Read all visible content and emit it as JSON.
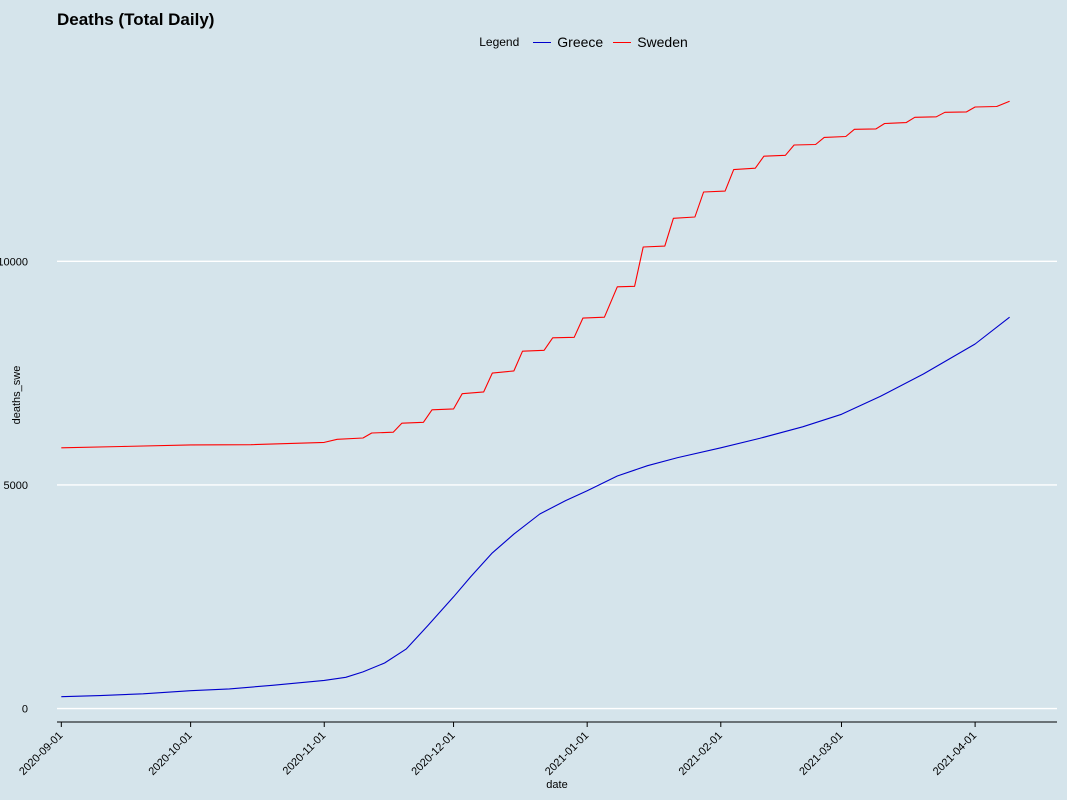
{
  "chart_data": {
    "type": "line",
    "title": "Deaths (Total Daily)",
    "xlabel": "date",
    "ylabel": "deaths_swe",
    "legend_title": "Legend",
    "legend_position": "top",
    "grid": "horizontal major lines",
    "xlim": [
      "2020-08-31",
      "2021-04-20"
    ],
    "ylim": [
      -300,
      14500
    ],
    "x_ticks": [
      "2020-09-01",
      "2020-10-01",
      "2020-11-01",
      "2020-12-01",
      "2021-01-01",
      "2021-02-01",
      "2021-03-01",
      "2021-04-01"
    ],
    "y_ticks": [
      0,
      5000,
      10000
    ],
    "series": [
      {
        "name": "Greece",
        "color": "#0000cc",
        "points": [
          [
            "2020-09-01",
            266
          ],
          [
            "2020-09-10",
            290
          ],
          [
            "2020-09-20",
            330
          ],
          [
            "2020-10-01",
            400
          ],
          [
            "2020-10-10",
            440
          ],
          [
            "2020-10-20",
            520
          ],
          [
            "2020-11-01",
            630
          ],
          [
            "2020-11-06",
            700
          ],
          [
            "2020-11-10",
            820
          ],
          [
            "2020-11-15",
            1020
          ],
          [
            "2020-11-20",
            1330
          ],
          [
            "2020-11-25",
            1850
          ],
          [
            "2020-12-01",
            2500
          ],
          [
            "2020-12-05",
            2950
          ],
          [
            "2020-12-10",
            3480
          ],
          [
            "2020-12-15",
            3900
          ],
          [
            "2020-12-21",
            4350
          ],
          [
            "2020-12-27",
            4650
          ],
          [
            "2021-01-01",
            4870
          ],
          [
            "2021-01-08",
            5200
          ],
          [
            "2021-01-15",
            5430
          ],
          [
            "2021-01-22",
            5610
          ],
          [
            "2021-02-01",
            5830
          ],
          [
            "2021-02-10",
            6040
          ],
          [
            "2021-02-20",
            6300
          ],
          [
            "2021-03-01",
            6580
          ],
          [
            "2021-03-10",
            6980
          ],
          [
            "2021-03-20",
            7480
          ],
          [
            "2021-04-01",
            8150
          ],
          [
            "2021-04-09",
            8750
          ]
        ]
      },
      {
        "name": "Sweden",
        "color": "#ff0000",
        "points": [
          [
            "2020-09-01",
            5830
          ],
          [
            "2020-09-15",
            5860
          ],
          [
            "2020-10-01",
            5895
          ],
          [
            "2020-10-15",
            5900
          ],
          [
            "2020-11-01",
            5950
          ],
          [
            "2020-11-04",
            6020
          ],
          [
            "2020-11-10",
            6050
          ],
          [
            "2020-11-12",
            6160
          ],
          [
            "2020-11-17",
            6180
          ],
          [
            "2020-11-19",
            6380
          ],
          [
            "2020-11-24",
            6400
          ],
          [
            "2020-11-26",
            6680
          ],
          [
            "2020-12-01",
            6700
          ],
          [
            "2020-12-03",
            7040
          ],
          [
            "2020-12-08",
            7080
          ],
          [
            "2020-12-10",
            7500
          ],
          [
            "2020-12-15",
            7550
          ],
          [
            "2020-12-17",
            7990
          ],
          [
            "2020-12-22",
            8010
          ],
          [
            "2020-12-24",
            8290
          ],
          [
            "2020-12-29",
            8300
          ],
          [
            "2020-12-31",
            8730
          ],
          [
            "2021-01-05",
            8750
          ],
          [
            "2021-01-08",
            9430
          ],
          [
            "2021-01-12",
            9440
          ],
          [
            "2021-01-14",
            10320
          ],
          [
            "2021-01-19",
            10340
          ],
          [
            "2021-01-21",
            10960
          ],
          [
            "2021-01-26",
            10990
          ],
          [
            "2021-01-28",
            11550
          ],
          [
            "2021-02-02",
            11570
          ],
          [
            "2021-02-04",
            12050
          ],
          [
            "2021-02-09",
            12080
          ],
          [
            "2021-02-11",
            12350
          ],
          [
            "2021-02-16",
            12370
          ],
          [
            "2021-02-18",
            12600
          ],
          [
            "2021-02-23",
            12610
          ],
          [
            "2021-02-25",
            12770
          ],
          [
            "2021-03-02",
            12790
          ],
          [
            "2021-03-04",
            12950
          ],
          [
            "2021-03-09",
            12960
          ],
          [
            "2021-03-11",
            13080
          ],
          [
            "2021-03-16",
            13100
          ],
          [
            "2021-03-18",
            13220
          ],
          [
            "2021-03-23",
            13230
          ],
          [
            "2021-03-25",
            13330
          ],
          [
            "2021-03-30",
            13340
          ],
          [
            "2021-04-01",
            13450
          ],
          [
            "2021-04-06",
            13460
          ],
          [
            "2021-04-09",
            13580
          ]
        ]
      }
    ]
  }
}
